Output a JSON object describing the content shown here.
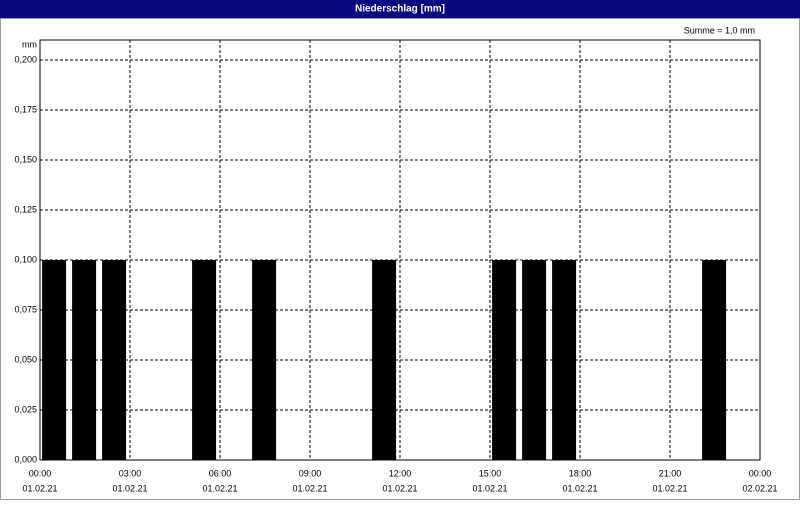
{
  "chart_data": {
    "type": "bar",
    "title": "Niederschlag [mm]",
    "y_unit": "mm",
    "annotation": "Summe = 1,0 mm",
    "x": [
      0,
      1,
      2,
      5,
      7,
      11,
      15,
      16,
      17,
      22
    ],
    "values": [
      0.1,
      0.1,
      0.1,
      0.1,
      0.1,
      0.1,
      0.1,
      0.1,
      0.1,
      0.1
    ],
    "color": "#000000",
    "xlim": [
      0,
      24
    ],
    "xticks": [
      {
        "value": 0,
        "label": "00:00",
        "date": "01.02.21"
      },
      {
        "value": 3,
        "label": "03:00",
        "date": "01.02.21"
      },
      {
        "value": 6,
        "label": "06:00",
        "date": "01.02.21"
      },
      {
        "value": 9,
        "label": "09:00",
        "date": "01.02.21"
      },
      {
        "value": 12,
        "label": "12:00",
        "date": "01.02.21"
      },
      {
        "value": 15,
        "label": "15:00",
        "date": "01.02.21"
      },
      {
        "value": 18,
        "label": "18:00",
        "date": "01.02.21"
      },
      {
        "value": 21,
        "label": "21:00",
        "date": "01.02.21"
      },
      {
        "value": 24,
        "label": "00:00",
        "date": "02.02.21"
      }
    ],
    "ylim": [
      0,
      0.21
    ],
    "yticks": [
      {
        "value": 0,
        "label": "0,000"
      },
      {
        "value": 0.025,
        "label": "0,025"
      },
      {
        "value": 0.05,
        "label": "0,050"
      },
      {
        "value": 0.075,
        "label": "0,075"
      },
      {
        "value": 0.1,
        "label": "0,100"
      },
      {
        "value": 0.125,
        "label": "0,125"
      },
      {
        "value": 0.15,
        "label": "0,150"
      },
      {
        "value": 0.175,
        "label": "0,175"
      },
      {
        "value": 0.2,
        "label": "0,200"
      }
    ],
    "grid": true
  }
}
